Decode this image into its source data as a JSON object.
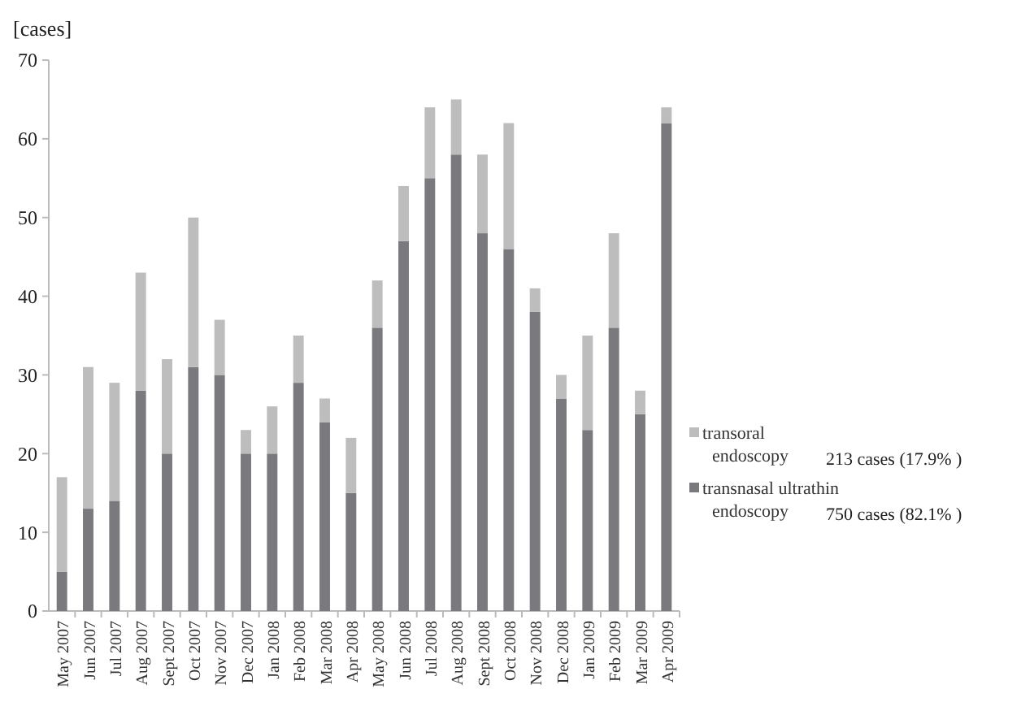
{
  "chart_data": {
    "type": "bar",
    "stacked": true,
    "ylabel": "[cases]",
    "categories": [
      "May 2007",
      "Jun 2007",
      "Jul 2007",
      "Aug 2007",
      "Sept 2007",
      "Oct 2007",
      "Nov 2007",
      "Dec 2007",
      "Jan 2008",
      "Feb 2008",
      "Mar 2008",
      "Apr 2008",
      "May 2008",
      "Jun 2008",
      "Jul 2008",
      "Aug 2008",
      "Sept 2008",
      "Oct 2008",
      "Nov 2008",
      "Dec 2008",
      "Jan 2009",
      "Feb 2009",
      "Mar 2009",
      "Apr 2009"
    ],
    "series": [
      {
        "name": "transnasal ultrathin endoscopy",
        "color": "#7a7a7e",
        "values": [
          5,
          13,
          14,
          28,
          20,
          31,
          30,
          20,
          20,
          29,
          24,
          15,
          36,
          47,
          55,
          58,
          48,
          46,
          38,
          27,
          23,
          36,
          25,
          62
        ]
      },
      {
        "name": "transoral endoscopy",
        "color": "#bdbdbd",
        "values": [
          12,
          18,
          15,
          15,
          12,
          19,
          7,
          3,
          6,
          6,
          3,
          7,
          6,
          7,
          9,
          7,
          10,
          16,
          3,
          3,
          12,
          12,
          3,
          2
        ]
      }
    ],
    "annotations": [
      "750 cases (82.1% )",
      "213 cases (17.9% )"
    ],
    "ylim": [
      0,
      70
    ],
    "yticks": [
      0,
      10,
      20,
      30,
      40,
      50,
      60,
      70
    ],
    "grid": false,
    "legend": "right"
  }
}
